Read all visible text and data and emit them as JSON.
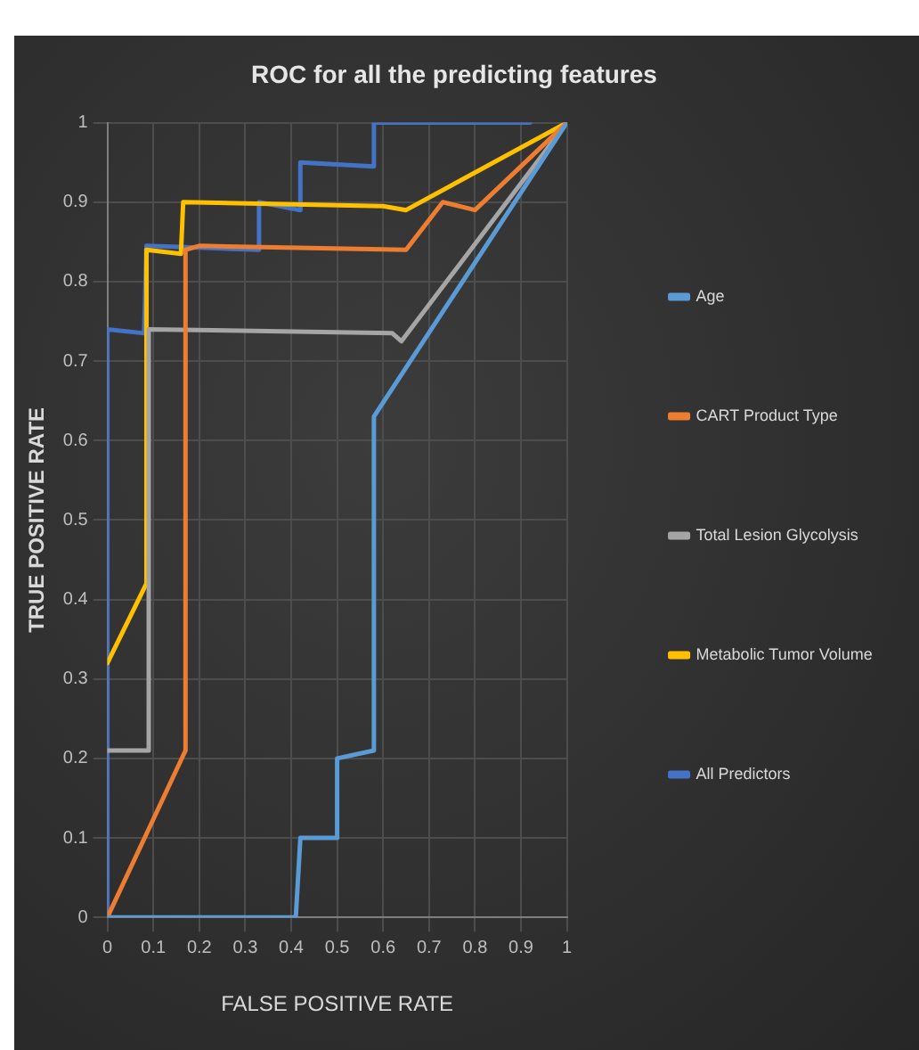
{
  "chart_data": {
    "type": "line",
    "title": "ROC for all the predicting features",
    "xlabel": "FALSE POSITIVE RATE",
    "ylabel": "TRUE POSITIVE RATE",
    "xlim": [
      0,
      1
    ],
    "xticks": [
      0,
      0.1,
      0.2,
      0.3,
      0.4,
      0.5,
      0.6,
      0.7,
      0.8,
      0.9,
      1
    ],
    "ylim": [
      0,
      1
    ],
    "yticks": [
      0,
      0.1,
      0.2,
      0.3,
      0.4,
      0.5,
      0.6,
      0.7,
      0.8,
      0.9,
      1
    ],
    "grid": true,
    "legend": "right",
    "marker": "none",
    "line_style": "solid",
    "series": [
      {
        "name": "Age",
        "color": "#5b9bd5",
        "x": [
          0,
          0.41,
          0.42,
          0.5,
          0.5,
          0.58,
          0.58,
          1
        ],
        "values": [
          0,
          0,
          0.1,
          0.1,
          0.2,
          0.21,
          0.63,
          1
        ]
      },
      {
        "name": "CART Product Type",
        "color": "#ed7d31",
        "x": [
          0,
          0.17,
          0.17,
          0.2,
          0.65,
          0.73,
          0.8,
          1
        ],
        "values": [
          0,
          0.21,
          0.84,
          0.845,
          0.84,
          0.9,
          0.89,
          1
        ]
      },
      {
        "name": "Total Lesion Glycolysis",
        "color": "#a5a5a5",
        "x": [
          0,
          0.09,
          0.09,
          0.62,
          0.64,
          1
        ],
        "values": [
          0.21,
          0.21,
          0.74,
          0.735,
          0.725,
          1
        ]
      },
      {
        "name": "Metabolic Tumor Volume",
        "color": "#ffc000",
        "x": [
          0,
          0.085,
          0.085,
          0.16,
          0.165,
          0.6,
          0.65,
          1
        ],
        "values": [
          0.32,
          0.42,
          0.84,
          0.835,
          0.9,
          0.895,
          0.89,
          1
        ]
      },
      {
        "name": "All Predictors",
        "color": "#4472c4",
        "x": [
          0,
          0,
          0.08,
          0.085,
          0.33,
          0.33,
          0.42,
          0.42,
          0.58,
          0.58,
          0.92
        ],
        "values": [
          0,
          0.74,
          0.735,
          0.845,
          0.84,
          0.9,
          0.89,
          0.95,
          0.945,
          1,
          1
        ]
      }
    ]
  }
}
